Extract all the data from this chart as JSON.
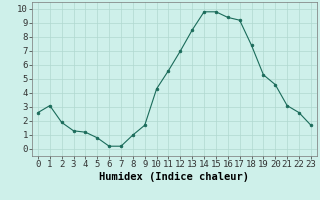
{
  "x": [
    0,
    1,
    2,
    3,
    4,
    5,
    6,
    7,
    8,
    9,
    10,
    11,
    12,
    13,
    14,
    15,
    16,
    17,
    18,
    19,
    20,
    21,
    22,
    23
  ],
  "y": [
    2.6,
    3.1,
    1.9,
    1.3,
    1.2,
    0.8,
    0.2,
    0.2,
    1.0,
    1.7,
    4.3,
    5.6,
    7.0,
    8.5,
    9.8,
    9.8,
    9.4,
    9.2,
    7.4,
    5.3,
    4.6,
    3.1,
    2.6,
    1.7
  ],
  "line_color": "#1a6b5a",
  "marker_color": "#1a6b5a",
  "bg_color": "#cef0ea",
  "grid_color": "#b0d8d0",
  "xlabel": "Humidex (Indice chaleur)",
  "xlabel_fontsize": 7.5,
  "ylabel_ticks": [
    0,
    1,
    2,
    3,
    4,
    5,
    6,
    7,
    8,
    9,
    10
  ],
  "xlim": [
    -0.5,
    23.5
  ],
  "ylim": [
    -0.5,
    10.5
  ],
  "tick_fontsize": 6.5
}
